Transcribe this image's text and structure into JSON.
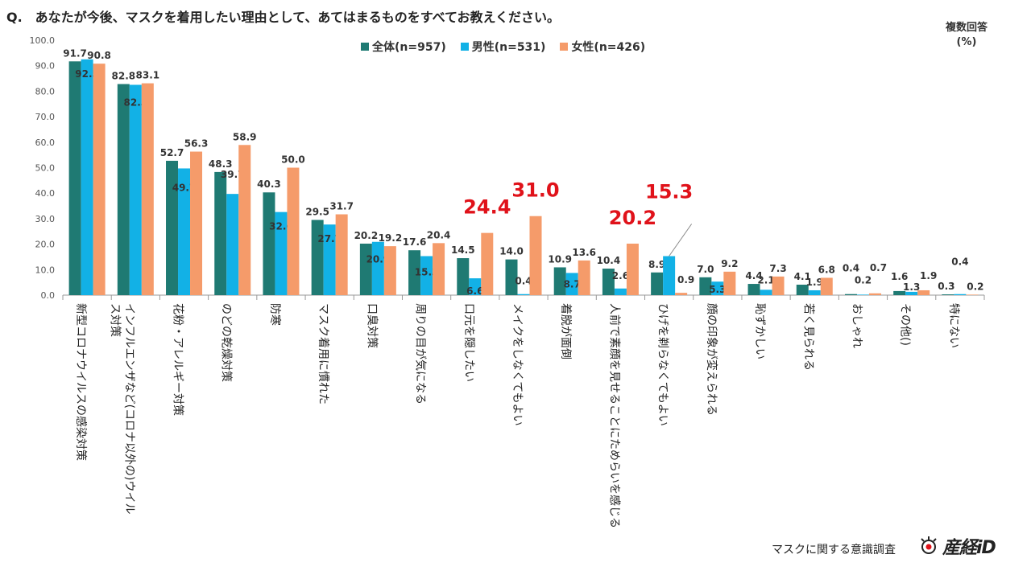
{
  "question": "Q.　あなたが今後、マスクを着用したい理由として、あてはまるものをすべてお教えください。",
  "note_line1": "複数回答",
  "note_line2": "(%)",
  "footer": "マスクに関する意識調査",
  "logo_text": "産経iD",
  "colors": {
    "all": "#1f7a73",
    "male": "#12b1e6",
    "female": "#f59b6a",
    "highlight": "#e0121a"
  },
  "chart_data": {
    "type": "bar",
    "title": "あなたが今後、マスクを着用したい理由として、あてはまるものをすべてお教えください。",
    "ylim": [
      0,
      100
    ],
    "yticks": [
      "0.0",
      "10.0",
      "20.0",
      "30.0",
      "40.0",
      "50.0",
      "60.0",
      "70.0",
      "80.0",
      "90.0",
      "100.0"
    ],
    "legend": "top-center",
    "categories": [
      "新型コロナウイルスの感染対策",
      "インフルエンザなど(コロナ以外の)ウイルス対策",
      "花粉・アレルギー対策",
      "のどの乾燥対策",
      "防寒",
      "マスク着用に慣れた",
      "口臭対策",
      "周りの目が気になる",
      "口元を隠したい",
      "メイクをしなくてもよい",
      "着脱が面倒",
      "人前で素顔を見せることにためらいを感じる",
      "ひげを剃らなくてもよい",
      "顔の印象が変えられる",
      "恥ずかしい",
      "若く見られる",
      "おしゃれ",
      "その他()",
      "特にない"
    ],
    "series": [
      {
        "name": "全体(n=957)",
        "values": [
          91.7,
          82.8,
          52.7,
          48.3,
          40.3,
          29.5,
          20.2,
          17.6,
          14.5,
          14.0,
          10.9,
          10.4,
          8.9,
          7.0,
          4.4,
          4.1,
          0.4,
          1.6,
          0.3
        ]
      },
      {
        "name": "男性(n=531)",
        "values": [
          92.5,
          82.5,
          49.7,
          39.7,
          32.6,
          27.7,
          20.9,
          15.3,
          6.6,
          0.4,
          8.7,
          2.6,
          15.3,
          5.3,
          2.1,
          1.9,
          0.2,
          1.3,
          0.4
        ]
      },
      {
        "name": "女性(n=426)",
        "values": [
          90.8,
          83.1,
          56.3,
          58.9,
          50.0,
          31.7,
          19.2,
          20.4,
          24.4,
          31.0,
          13.6,
          20.2,
          0.9,
          9.2,
          7.3,
          6.8,
          0.7,
          1.9,
          0.2
        ]
      }
    ],
    "highlighted_labels": [
      "24.4",
      "31.0",
      "20.2",
      "15.3"
    ]
  }
}
